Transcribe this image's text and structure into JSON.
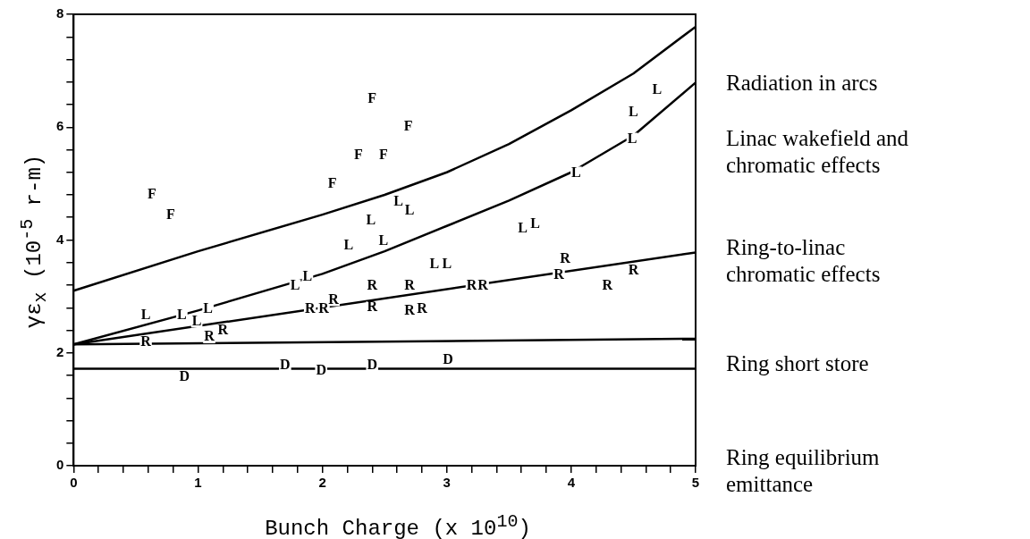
{
  "chart_data": {
    "type": "scatter",
    "xlabel": "Bunch Charge (x 10$^{10}$)",
    "ylabel": "γε$_{x}$  (10$^{-5}$ r-m)",
    "xlim": [
      0,
      5
    ],
    "ylim": [
      0,
      8
    ],
    "xticks": [
      0,
      {
        "value": 0.2,
        "label": null
      },
      {
        "value": 0.4,
        "label": null
      },
      {
        "value": 0.6,
        "label": null
      },
      {
        "value": 0.8,
        "label": null
      },
      1,
      {
        "value": 1.2,
        "label": null
      },
      {
        "value": 1.4,
        "label": null
      },
      {
        "value": 1.6,
        "label": null
      },
      {
        "value": 1.8,
        "label": null
      },
      2,
      {
        "value": 2.2,
        "label": null
      },
      {
        "value": 2.4,
        "label": null
      },
      {
        "value": 2.6,
        "label": null
      },
      {
        "value": 2.8,
        "label": null
      },
      3,
      {
        "value": 3.2,
        "label": null
      },
      {
        "value": 3.4,
        "label": null
      },
      {
        "value": 3.6,
        "label": null
      },
      {
        "value": 3.8,
        "label": null
      },
      4,
      {
        "value": 4.2,
        "label": null
      },
      {
        "value": 4.4,
        "label": null
      },
      {
        "value": 4.6,
        "label": null
      },
      {
        "value": 4.8,
        "label": null
      },
      5
    ],
    "yticks": [
      0,
      {
        "value": 0.4,
        "label": null
      },
      {
        "value": 0.8,
        "label": null
      },
      {
        "value": 1.2,
        "label": null
      },
      {
        "value": 1.6,
        "label": null
      },
      2,
      {
        "value": 2.4,
        "label": null
      },
      {
        "value": 2.8,
        "label": null
      },
      {
        "value": 3.2,
        "label": null
      },
      {
        "value": 3.6,
        "label": null
      },
      4,
      {
        "value": 4.4,
        "label": null
      },
      {
        "value": 4.8,
        "label": null
      },
      {
        "value": 5.2,
        "label": null
      },
      {
        "value": 5.6,
        "label": null
      },
      6,
      {
        "value": 6.4,
        "label": null
      },
      {
        "value": 6.8,
        "label": null
      },
      {
        "value": 7.2,
        "label": null
      },
      {
        "value": 7.6,
        "label": null
      },
      8
    ],
    "legend": false,
    "grid": false,
    "series": [
      {
        "name": "F",
        "color": "#000000",
        "x": [
          0.63,
          0.78,
          2.08,
          2.29,
          2.49,
          2.4,
          2.69
        ],
        "values": [
          4.8,
          4.43,
          5.0,
          5.5,
          5.5,
          6.49,
          6.0
        ]
      },
      {
        "name": "L",
        "color": "#000000",
        "x": [
          0.58,
          0.87,
          0.99,
          1.08,
          1.78,
          1.88,
          2.21,
          2.39,
          2.49,
          2.61,
          2.7,
          2.9,
          3.0,
          3.61,
          3.71,
          4.04,
          4.49,
          4.5,
          4.69
        ],
        "values": [
          2.67,
          2.67,
          2.56,
          2.78,
          3.19,
          3.35,
          3.9,
          4.35,
          3.98,
          4.67,
          4.51,
          3.57,
          3.57,
          4.2,
          4.28,
          5.19,
          5.79,
          6.26,
          6.65
        ]
      },
      {
        "name": "R",
        "color": "#000000",
        "x": [
          0.58,
          1.09,
          1.2,
          1.9,
          2.01,
          2.09,
          2.4,
          2.4,
          2.7,
          2.7,
          2.8,
          3.2,
          3.29,
          3.9,
          3.95,
          4.29,
          4.5
        ],
        "values": [
          2.19,
          2.28,
          2.39,
          2.78,
          2.78,
          2.94,
          3.19,
          2.8,
          3.19,
          2.75,
          2.78,
          3.18,
          3.19,
          3.38,
          3.66,
          3.18,
          3.46
        ]
      },
      {
        "name": "D",
        "color": "#000000",
        "x": [
          0.89,
          1.7,
          1.99,
          2.4,
          3.01
        ],
        "values": [
          1.57,
          1.78,
          1.68,
          1.78,
          1.87
        ]
      },
      {
        "type": "line",
        "color": "#000000",
        "x": [
          0,
          1,
          2,
          2.5,
          3,
          3.5,
          4,
          4.5,
          5
        ],
        "values": [
          3.1,
          3.8,
          4.45,
          4.8,
          5.2,
          5.7,
          6.3,
          6.95,
          7.78
        ]
      },
      {
        "type": "line",
        "color": "#000000",
        "x": [
          0,
          1,
          2,
          2.5,
          3,
          3.5,
          4,
          4.5,
          5
        ],
        "values": [
          2.15,
          2.75,
          3.4,
          3.8,
          4.25,
          4.7,
          5.2,
          5.85,
          6.79
        ]
      },
      {
        "type": "line",
        "color": "#000000",
        "x": [
          0,
          5
        ],
        "values": [
          2.15,
          3.78
        ]
      },
      {
        "type": "line",
        "color": "#000000",
        "x": [
          0,
          5
        ],
        "values": [
          2.15,
          2.25
        ]
      },
      {
        "type": "line",
        "color": "#000000",
        "x": [
          0,
          5
        ],
        "values": [
          1.72,
          1.72
        ]
      }
    ],
    "annotations": [
      "Radiation in arcs",
      "Linac wakefield and chromatic effects",
      "Ring-to-linac chromatic effects",
      "Ring short store",
      "Ring equilibrium emittance"
    ]
  }
}
